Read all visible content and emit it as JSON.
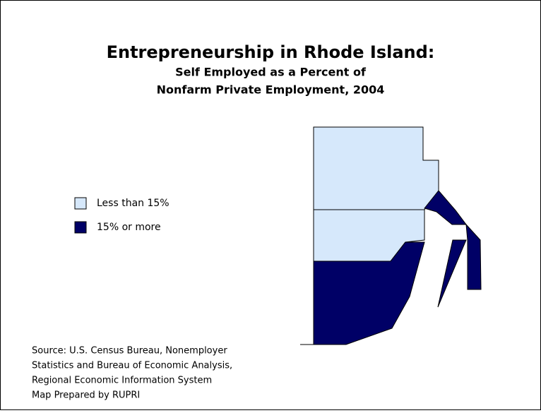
{
  "header": {
    "title": "Entrepreneurship in Rhode Island:",
    "subtitle": [
      "Self Employed as a Percent of",
      "Nonfarm Private Employment, 2004"
    ]
  },
  "legend": {
    "items": [
      {
        "label": "Less than 15%",
        "color": "#d6e8fb"
      },
      {
        "label": "15% or more",
        "color": "#000066"
      }
    ]
  },
  "source": [
    "Source: U.S. Census Bureau, Nonemployer",
    "Statistics and Bureau of Economic Analysis,",
    "Regional Economic Information System",
    "Map Prepared by RUPRI"
  ]
}
